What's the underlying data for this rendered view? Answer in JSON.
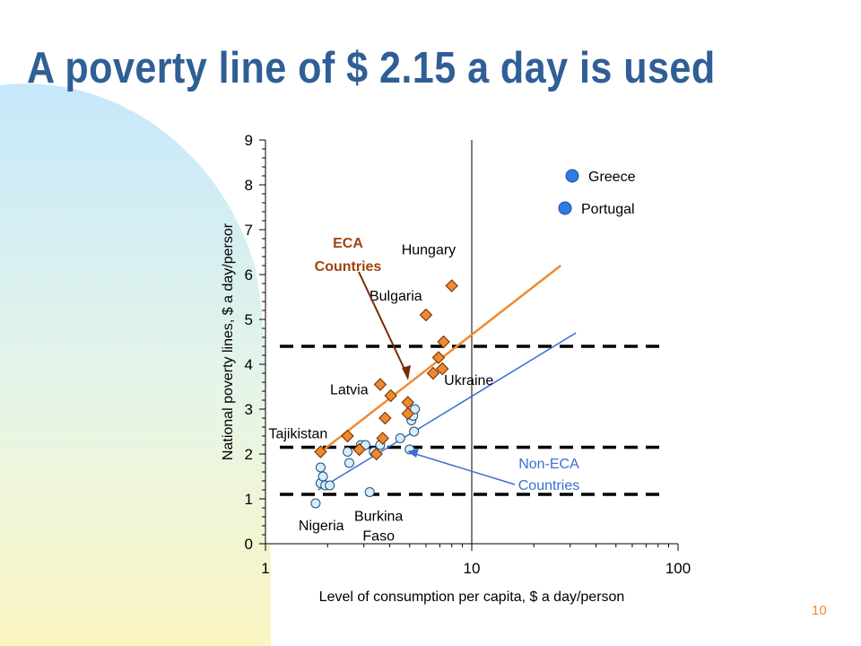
{
  "slide": {
    "title": "A poverty line of $ 2.15 a day is used",
    "page_number": "10"
  },
  "colors": {
    "title": "#2f5f96",
    "eca": "#f08a2e",
    "eca_label": "#a0420e",
    "non_eca": "#3a6fd2",
    "non_eca_marker_fill": "#d6eefb",
    "legend_marker": "#2e7ae6",
    "page_number": "#f08a2e"
  },
  "chart_data": {
    "type": "scatter",
    "x_scale": "log",
    "xlim": [
      1,
      100
    ],
    "ylim": [
      0,
      9
    ],
    "x_ticks": [
      "1",
      "10",
      "100"
    ],
    "y_ticks": [
      "0",
      "1",
      "2",
      "3",
      "4",
      "5",
      "6",
      "7",
      "8",
      "9"
    ],
    "xlabel": "Level of consumption per capita, $ a day/person",
    "ylabel": "National poverty lines, $ a day/persor",
    "vertical_reference_line_x": 10,
    "horizontal_dashed_lines_y": [
      1.1,
      2.15,
      4.4
    ],
    "legend": [
      "Greece",
      "Portugal"
    ],
    "series": [
      {
        "name": "ECA Countries",
        "marker": "diamond",
        "points": [
          {
            "x": 1.85,
            "y": 2.05
          },
          {
            "x": 2.5,
            "y": 2.4
          },
          {
            "x": 2.85,
            "y": 2.1
          },
          {
            "x": 3.45,
            "y": 2.0
          },
          {
            "x": 3.7,
            "y": 2.35
          },
          {
            "x": 3.8,
            "y": 2.8
          },
          {
            "x": 3.6,
            "y": 3.55
          },
          {
            "x": 4.05,
            "y": 3.3
          },
          {
            "x": 4.9,
            "y": 3.15
          },
          {
            "x": 4.9,
            "y": 2.9
          },
          {
            "x": 6.0,
            "y": 5.1
          },
          {
            "x": 6.5,
            "y": 3.8
          },
          {
            "x": 6.9,
            "y": 4.15
          },
          {
            "x": 7.2,
            "y": 3.9
          },
          {
            "x": 7.3,
            "y": 4.5
          },
          {
            "x": 8.0,
            "y": 5.75
          }
        ],
        "trend": [
          {
            "x": 1.8,
            "y": 2.0
          },
          {
            "x": 27,
            "y": 6.2
          }
        ]
      },
      {
        "name": "Non-ECA Countries",
        "marker": "circle",
        "points": [
          {
            "x": 1.75,
            "y": 0.9
          },
          {
            "x": 1.85,
            "y": 1.35
          },
          {
            "x": 1.85,
            "y": 1.7
          },
          {
            "x": 1.9,
            "y": 1.5
          },
          {
            "x": 1.95,
            "y": 1.3
          },
          {
            "x": 2.05,
            "y": 1.3
          },
          {
            "x": 2.5,
            "y": 2.05
          },
          {
            "x": 2.55,
            "y": 1.8
          },
          {
            "x": 2.9,
            "y": 2.2
          },
          {
            "x": 3.05,
            "y": 2.2
          },
          {
            "x": 3.2,
            "y": 1.15
          },
          {
            "x": 3.35,
            "y": 2.05
          },
          {
            "x": 3.6,
            "y": 2.2
          },
          {
            "x": 4.5,
            "y": 2.35
          },
          {
            "x": 5.0,
            "y": 2.1
          },
          {
            "x": 5.1,
            "y": 2.75
          },
          {
            "x": 5.2,
            "y": 2.85
          },
          {
            "x": 5.25,
            "y": 2.5
          },
          {
            "x": 5.3,
            "y": 3.0
          }
        ],
        "trend": [
          {
            "x": 1.8,
            "y": 1.2
          },
          {
            "x": 32,
            "y": 4.7
          }
        ]
      }
    ],
    "point_labels": [
      {
        "text": "Hungary",
        "x": 8.0,
        "y": 5.75
      },
      {
        "text": "Bulgaria",
        "x": 6.0,
        "y": 5.1
      },
      {
        "text": "Latvia",
        "x": 3.6,
        "y": 3.55
      },
      {
        "text": "Ukraine",
        "x": 7.2,
        "y": 3.9
      },
      {
        "text": "Tajikistan",
        "x": 1.85,
        "y": 2.05
      },
      {
        "text": "Nigeria",
        "x": 1.75,
        "y": 0.9
      },
      {
        "text": "Burkina Faso",
        "x": 3.2,
        "y": 1.15
      }
    ],
    "annotations": {
      "eca_line1": "ECA",
      "eca_line2": "Countries",
      "non_eca_line1": "Non-ECA",
      "non_eca_line2": "Countries"
    }
  }
}
